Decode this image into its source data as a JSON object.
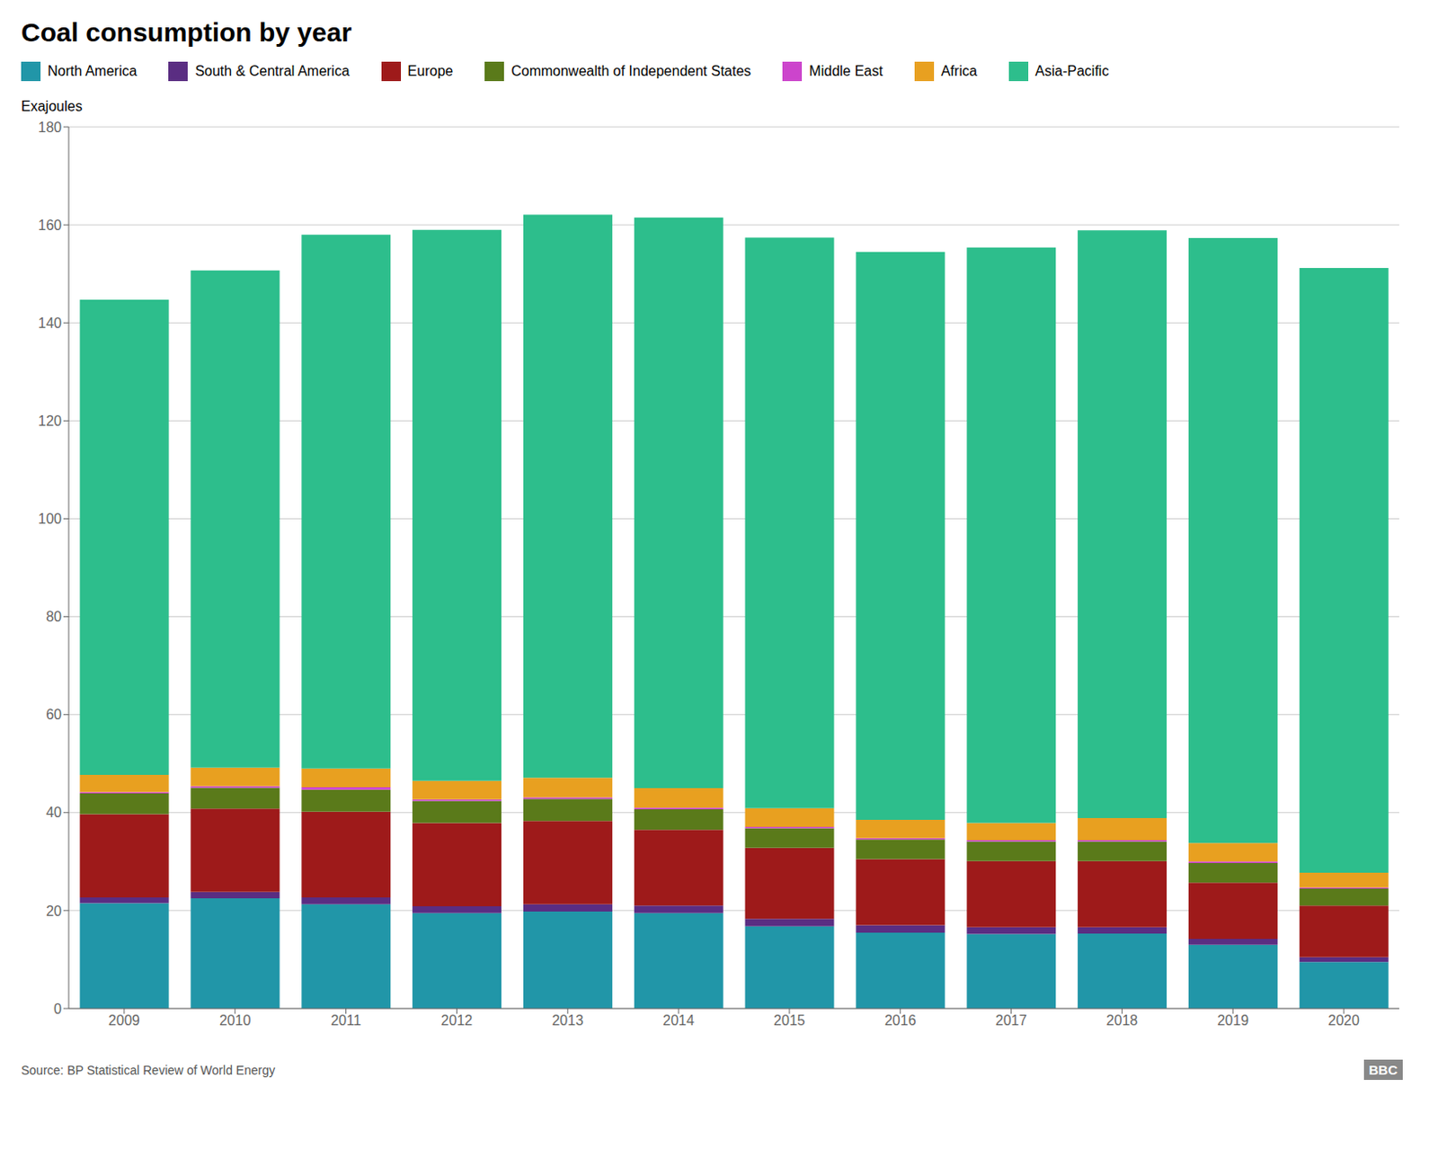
{
  "chart_data": {
    "type": "bar",
    "stacked": true,
    "title": "Coal consumption by year",
    "y_label": "Exajoules",
    "annotations": [
      "Source: BP Statistical Review of World Energy",
      "BBC"
    ],
    "categories": [
      "2009",
      "2010",
      "2011",
      "2012",
      "2013",
      "2014",
      "2015",
      "2016",
      "2017",
      "2018",
      "2019",
      "2020"
    ],
    "series": [
      {
        "name": "North America",
        "color": "#2196a8",
        "values": [
          21.5,
          22.5,
          21.3,
          19.5,
          19.8,
          19.5,
          16.8,
          15.5,
          15.2,
          15.3,
          13.0,
          9.5
        ]
      },
      {
        "name": "South & Central America",
        "color": "#5a2d82",
        "values": [
          1.2,
          1.3,
          1.4,
          1.4,
          1.5,
          1.5,
          1.5,
          1.5,
          1.4,
          1.3,
          1.2,
          1.0
        ]
      },
      {
        "name": "Europe",
        "color": "#9e1a1a",
        "values": [
          17.0,
          17.0,
          17.5,
          17.0,
          17.0,
          15.5,
          14.5,
          13.5,
          13.5,
          13.5,
          11.5,
          10.5
        ]
      },
      {
        "name": "Commonwealth of Independent States",
        "color": "#5a7a1a",
        "values": [
          4.2,
          4.3,
          4.5,
          4.5,
          4.5,
          4.2,
          4.0,
          4.0,
          4.0,
          4.0,
          4.0,
          3.5
        ]
      },
      {
        "name": "Middle East",
        "color": "#cc44cc",
        "values": [
          0.3,
          0.3,
          0.5,
          0.3,
          0.3,
          0.3,
          0.3,
          0.3,
          0.3,
          0.3,
          0.3,
          0.2
        ]
      },
      {
        "name": "Africa",
        "color": "#e8a020",
        "values": [
          3.5,
          3.8,
          3.8,
          3.8,
          4.0,
          4.0,
          3.8,
          3.7,
          3.5,
          4.5,
          3.8,
          3.0
        ]
      },
      {
        "name": "Asia-Pacific",
        "color": "#2dbe8c",
        "values": [
          97.0,
          101.5,
          109.0,
          112.5,
          115.0,
          116.5,
          116.5,
          116.0,
          117.5,
          120.0,
          123.5,
          123.5
        ]
      }
    ],
    "ylim": [
      0,
      180
    ],
    "yticks": [
      0,
      20,
      40,
      60,
      80,
      100,
      120,
      140,
      160,
      180
    ],
    "grid": true,
    "legend": "top"
  }
}
